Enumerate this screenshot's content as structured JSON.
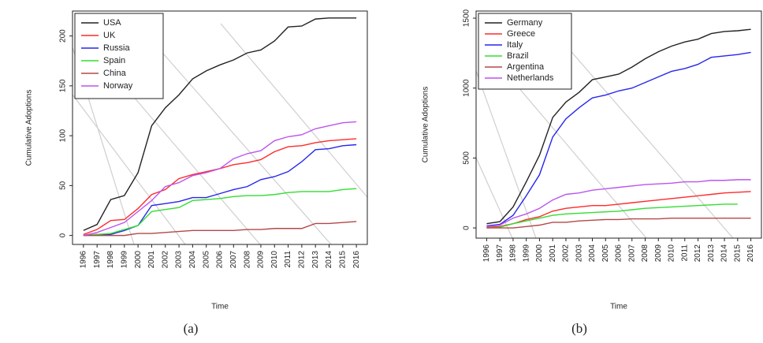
{
  "chart_data": [
    {
      "type": "line",
      "caption": "(a)",
      "x_label": "Time",
      "y_label": "Cumulative Adoptions",
      "x": [
        1996,
        1997,
        1998,
        1999,
        2000,
        2001,
        2002,
        2003,
        2004,
        2005,
        2006,
        2007,
        2008,
        2009,
        2010,
        2011,
        2012,
        2013,
        2014,
        2015,
        2016
      ],
      "xlim": [
        1995.2,
        2016.8
      ],
      "xticks": [
        1996,
        1997,
        1998,
        1999,
        2000,
        2001,
        2002,
        2003,
        2004,
        2005,
        2006,
        2007,
        2008,
        2009,
        2010,
        2011,
        2012,
        2013,
        2014,
        2015,
        2016
      ],
      "ylim": [
        -9,
        225
      ],
      "yticks": [
        0,
        50,
        100,
        150,
        200
      ],
      "legend": "top-left",
      "grid": false,
      "series": [
        {
          "name": "USA",
          "color": "#222222",
          "values": [
            5,
            11,
            36,
            40,
            63,
            110,
            128,
            141,
            157,
            165,
            171,
            176,
            183,
            186,
            195,
            209,
            210,
            217,
            218,
            218,
            218
          ]
        },
        {
          "name": "UK",
          "color": "#ff2a2a",
          "values": [
            1,
            6,
            15,
            16,
            27,
            41,
            46,
            57,
            61,
            64,
            67,
            71,
            73,
            76,
            84,
            89,
            90,
            93,
            95,
            96,
            97
          ]
        },
        {
          "name": "Russia",
          "color": "#2626ee",
          "values": [
            0,
            1,
            1,
            5,
            10,
            30,
            32,
            34,
            38,
            38,
            42,
            46,
            49,
            56,
            59,
            64,
            74,
            86,
            87,
            90,
            91
          ]
        },
        {
          "name": "Spain",
          "color": "#33dd33",
          "values": [
            0,
            1,
            2,
            6,
            10,
            24,
            26,
            28,
            35,
            36,
            37,
            39,
            40,
            40,
            41,
            43,
            44,
            44,
            44,
            46,
            47
          ]
        },
        {
          "name": "China",
          "color": "#b34848",
          "values": [
            0,
            0,
            0,
            0,
            2,
            2,
            3,
            4,
            5,
            5,
            5,
            5,
            6,
            6,
            7,
            7,
            7,
            12,
            12,
            13,
            14
          ]
        },
        {
          "name": "Norway",
          "color": "#bb55ee",
          "values": [
            0,
            3,
            8,
            13,
            24,
            35,
            49,
            53,
            60,
            63,
            67,
            77,
            82,
            85,
            95,
            99,
            101,
            107,
            110,
            113,
            114
          ]
        }
      ]
    },
    {
      "type": "line",
      "caption": "(b)",
      "x_label": "Time",
      "y_label": "Cumulative Adoptions",
      "x": [
        1996,
        1997,
        1998,
        1999,
        2000,
        2001,
        2002,
        2003,
        2004,
        2005,
        2006,
        2007,
        2008,
        2009,
        2010,
        2011,
        2012,
        2013,
        2014,
        2015,
        2016
      ],
      "xlim": [
        1995.2,
        2016.8
      ],
      "xticks": [
        1996,
        1997,
        1998,
        1999,
        2000,
        2001,
        2002,
        2003,
        2004,
        2005,
        2006,
        2007,
        2008,
        2009,
        2010,
        2011,
        2012,
        2013,
        2014,
        2015,
        2016
      ],
      "ylim": [
        -73,
        1551
      ],
      "yticks": [
        0,
        500,
        1000,
        1500
      ],
      "legend": "top-left",
      "grid": false,
      "series": [
        {
          "name": "Germany",
          "color": "#222222",
          "values": [
            30,
            45,
            150,
            330,
            520,
            790,
            900,
            970,
            1060,
            1080,
            1100,
            1150,
            1210,
            1260,
            1300,
            1330,
            1350,
            1390,
            1405,
            1410,
            1420
          ]
        },
        {
          "name": "Greece",
          "color": "#ff2a2a",
          "values": [
            5,
            10,
            30,
            60,
            80,
            120,
            140,
            150,
            160,
            160,
            170,
            180,
            190,
            200,
            210,
            220,
            230,
            240,
            250,
            255,
            260
          ]
        },
        {
          "name": "Italy",
          "color": "#2626ee",
          "values": [
            15,
            25,
            90,
            230,
            380,
            650,
            780,
            860,
            930,
            950,
            980,
            1000,
            1040,
            1080,
            1120,
            1140,
            1170,
            1220,
            1230,
            1240,
            1255
          ]
        },
        {
          "name": "Brazil",
          "color": "#33dd33",
          "values": [
            0,
            5,
            30,
            50,
            70,
            90,
            100,
            105,
            110,
            115,
            120,
            130,
            140,
            145,
            150,
            155,
            160,
            165,
            170,
            170,
            null
          ]
        },
        {
          "name": "Argentina",
          "color": "#b34848",
          "values": [
            0,
            0,
            0,
            10,
            20,
            40,
            40,
            50,
            55,
            60,
            60,
            65,
            65,
            65,
            70,
            70,
            70,
            70,
            70,
            70,
            70
          ]
        },
        {
          "name": "Netherlands",
          "color": "#bb55ee",
          "values": [
            10,
            20,
            70,
            100,
            140,
            200,
            240,
            250,
            270,
            280,
            290,
            300,
            310,
            315,
            320,
            330,
            330,
            340,
            340,
            345,
            345
          ]
        }
      ]
    }
  ]
}
